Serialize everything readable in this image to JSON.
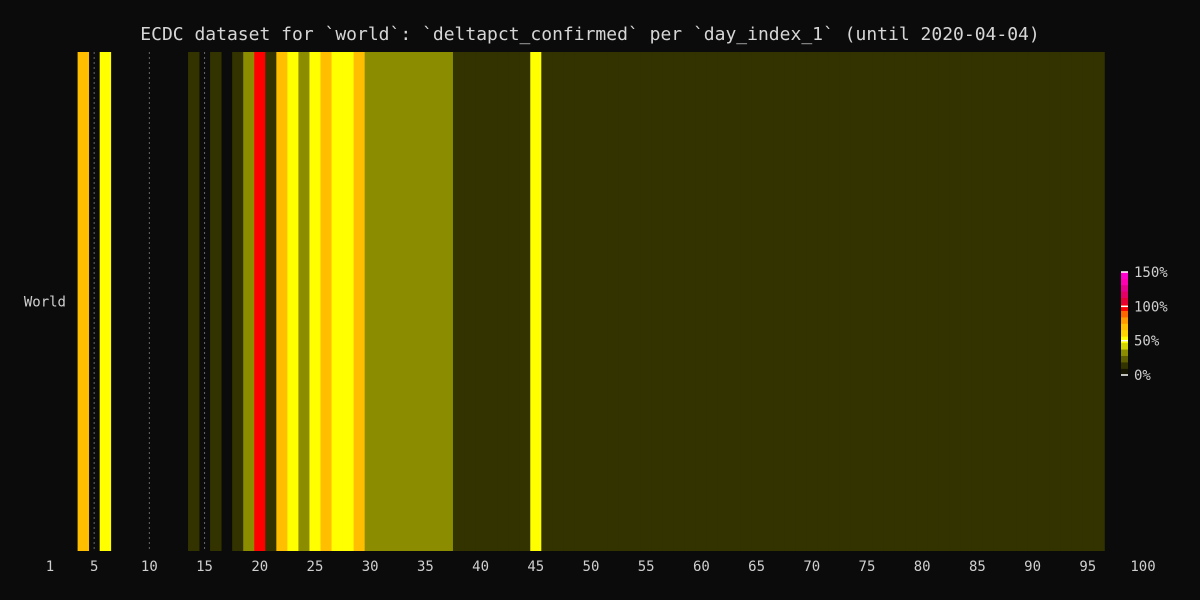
{
  "chart_data": {
    "type": "heatmap",
    "title": "ECDC dataset for `world`: `deltapct_confirmed` per `day_index_1` (until 2020-04-04)",
    "xlabel": "",
    "ylabel": "",
    "rows": [
      "World"
    ],
    "x_range": [
      1,
      100
    ],
    "x_ticks": [
      1,
      5,
      10,
      15,
      20,
      25,
      30,
      35,
      40,
      45,
      50,
      55,
      60,
      65,
      70,
      75,
      80,
      85,
      90,
      95,
      100
    ],
    "x_tick_labels": [
      "1",
      "5",
      "10",
      "15",
      "20",
      "25",
      "30",
      "35",
      "40",
      "45",
      "50",
      "55",
      "60",
      "65",
      "70",
      "75",
      "80",
      "85",
      "90",
      "95",
      "100"
    ],
    "color_scale": {
      "min": 0,
      "max": 150,
      "ticks": [
        0,
        50,
        100,
        150
      ],
      "tick_labels": [
        "0%",
        "50%",
        "100%",
        "150%"
      ],
      "stops": [
        {
          "v": 0,
          "color": "#141400"
        },
        {
          "v": 10,
          "color": "#333300"
        },
        {
          "v": 20,
          "color": "#5e5e00"
        },
        {
          "v": 30,
          "color": "#8c8c00"
        },
        {
          "v": 40,
          "color": "#d4d400"
        },
        {
          "v": 50,
          "color": "#ffff00"
        },
        {
          "v": 60,
          "color": "#ffd400"
        },
        {
          "v": 70,
          "color": "#ffbf00"
        },
        {
          "v": 80,
          "color": "#ff9900"
        },
        {
          "v": 90,
          "color": "#ff6600"
        },
        {
          "v": 100,
          "color": "#ff0000"
        },
        {
          "v": 110,
          "color": "#e60033"
        },
        {
          "v": 120,
          "color": "#e60066"
        },
        {
          "v": 130,
          "color": "#e6008c"
        },
        {
          "v": 140,
          "color": "#ff00b3"
        },
        {
          "v": 150,
          "color": "#ff00cc"
        }
      ]
    },
    "values": [
      {
        "x": 4,
        "v": 70
      },
      {
        "x": 6,
        "v": 50
      },
      {
        "x": 14,
        "v": 10
      },
      {
        "x": 16,
        "v": 10
      },
      {
        "x": 18,
        "v": 10
      },
      {
        "x": 19,
        "v": 30
      },
      {
        "x": 20,
        "v": 100
      },
      {
        "x": 21,
        "v": 10
      },
      {
        "x": 22,
        "v": 70
      },
      {
        "x": 23,
        "v": 55
      },
      {
        "x": 24,
        "v": 30
      },
      {
        "x": 25,
        "v": 50
      },
      {
        "x": 26,
        "v": 70
      },
      {
        "x": 27,
        "v": 50
      },
      {
        "x": 28,
        "v": 50
      },
      {
        "x": 29,
        "v": 70
      },
      {
        "x": 30,
        "v": 30
      },
      {
        "x": 31,
        "v": 30
      },
      {
        "x": 32,
        "v": 30
      },
      {
        "x": 33,
        "v": 30
      },
      {
        "x": 34,
        "v": 30
      },
      {
        "x": 35,
        "v": 30
      },
      {
        "x": 36,
        "v": 30
      },
      {
        "x": 37,
        "v": 30
      },
      {
        "x": 38,
        "v": 10
      },
      {
        "x": 39,
        "v": 10
      },
      {
        "x": 40,
        "v": 10
      },
      {
        "x": 41,
        "v": 10
      },
      {
        "x": 42,
        "v": 10
      },
      {
        "x": 43,
        "v": 10
      },
      {
        "x": 44,
        "v": 10
      },
      {
        "x": 45,
        "v": 50
      },
      {
        "x": 46,
        "v": 10
      },
      {
        "x": 47,
        "v": 10
      },
      {
        "x": 48,
        "v": 10
      },
      {
        "x": 49,
        "v": 10
      },
      {
        "x": 50,
        "v": 10
      },
      {
        "x": 51,
        "v": 10
      },
      {
        "x": 52,
        "v": 10
      },
      {
        "x": 53,
        "v": 10
      },
      {
        "x": 54,
        "v": 10
      },
      {
        "x": 55,
        "v": 10
      },
      {
        "x": 56,
        "v": 10
      },
      {
        "x": 57,
        "v": 10
      },
      {
        "x": 58,
        "v": 10
      },
      {
        "x": 59,
        "v": 10
      },
      {
        "x": 60,
        "v": 10
      },
      {
        "x": 61,
        "v": 10
      },
      {
        "x": 62,
        "v": 10
      },
      {
        "x": 63,
        "v": 10
      },
      {
        "x": 64,
        "v": 10
      },
      {
        "x": 65,
        "v": 10
      },
      {
        "x": 66,
        "v": 10
      },
      {
        "x": 67,
        "v": 10
      },
      {
        "x": 68,
        "v": 10
      },
      {
        "x": 69,
        "v": 10
      },
      {
        "x": 70,
        "v": 10
      },
      {
        "x": 71,
        "v": 10
      },
      {
        "x": 72,
        "v": 10
      },
      {
        "x": 73,
        "v": 10
      },
      {
        "x": 74,
        "v": 10
      },
      {
        "x": 75,
        "v": 10
      },
      {
        "x": 76,
        "v": 10
      },
      {
        "x": 77,
        "v": 10
      },
      {
        "x": 78,
        "v": 10
      },
      {
        "x": 79,
        "v": 10
      },
      {
        "x": 80,
        "v": 10
      },
      {
        "x": 81,
        "v": 10
      },
      {
        "x": 82,
        "v": 10
      },
      {
        "x": 83,
        "v": 10
      },
      {
        "x": 84,
        "v": 10
      },
      {
        "x": 85,
        "v": 10
      },
      {
        "x": 86,
        "v": 10
      },
      {
        "x": 87,
        "v": 10
      },
      {
        "x": 88,
        "v": 10
      },
      {
        "x": 89,
        "v": 10
      },
      {
        "x": 90,
        "v": 10
      },
      {
        "x": 91,
        "v": 10
      },
      {
        "x": 92,
        "v": 10
      },
      {
        "x": 93,
        "v": 10
      },
      {
        "x": 94,
        "v": 10
      },
      {
        "x": 95,
        "v": 10
      },
      {
        "x": 96,
        "v": 10
      }
    ],
    "dotted_columns": [
      5,
      10,
      15
    ]
  }
}
